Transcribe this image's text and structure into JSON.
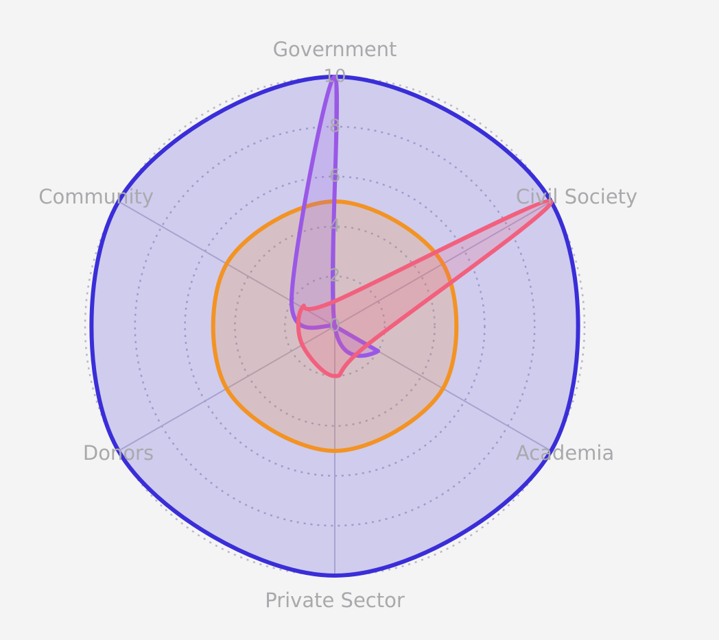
{
  "chart_data": {
    "type": "radar",
    "categories": [
      "Government",
      "Civil Society",
      "Academia",
      "Private Sector",
      "Donors",
      "Community"
    ],
    "series": [
      {
        "color": "#3a2ed8",
        "values": [
          10,
          10,
          10,
          10,
          10,
          10
        ]
      },
      {
        "color": "#f39324",
        "values": [
          5,
          5,
          5,
          5,
          5,
          5
        ]
      },
      {
        "color": "#9a58e6",
        "values": [
          10,
          0,
          2,
          0,
          0,
          2
        ]
      },
      {
        "color": "#f2607e",
        "values": [
          1,
          10,
          1.5,
          2,
          1.5,
          1.5
        ]
      }
    ],
    "ylim": [
      0,
      10
    ],
    "yticks": [
      0,
      2,
      4,
      6,
      8,
      10
    ],
    "grid": true
  }
}
